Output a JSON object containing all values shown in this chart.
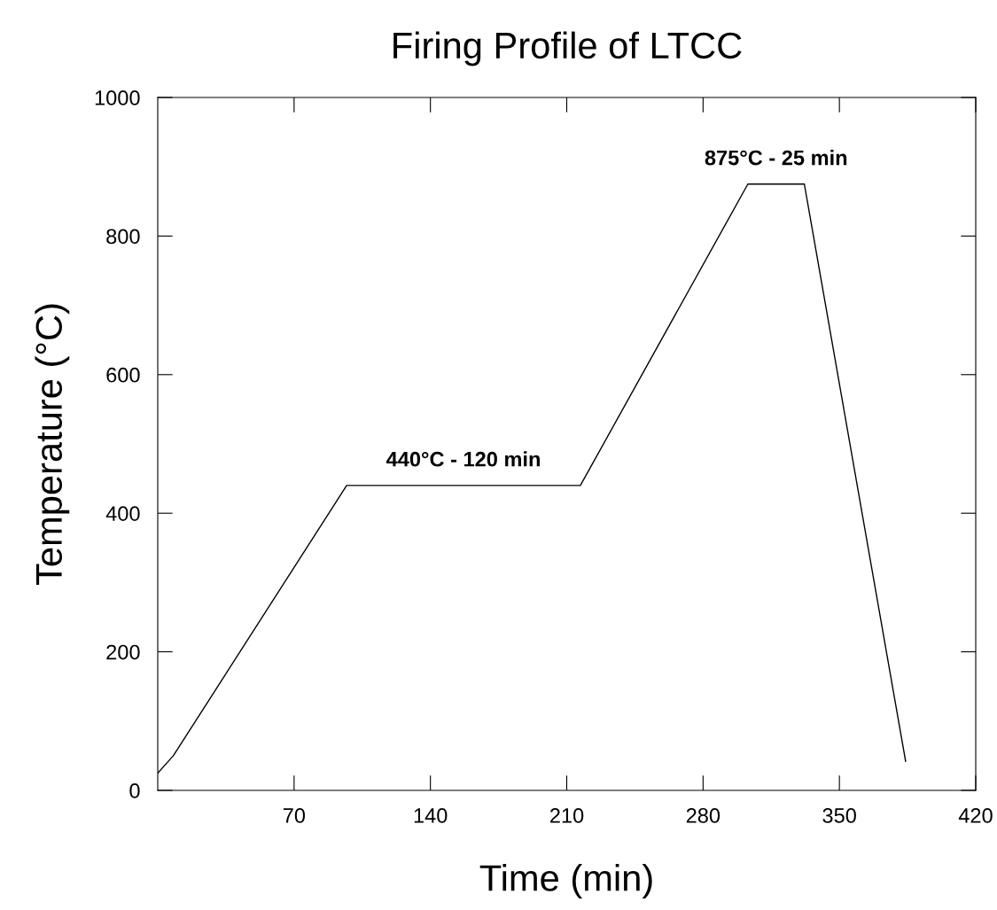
{
  "chart_data": {
    "type": "line",
    "title": "Firing Profile of LTCC",
    "xlabel": "Time (min)",
    "ylabel": "Temperature (°C)",
    "x": [
      0,
      8,
      97,
      217,
      303,
      332,
      384
    ],
    "series": [
      {
        "color": "#000000",
        "values": [
          25,
          50,
          440,
          440,
          875,
          875,
          42
        ]
      }
    ],
    "xlim": [
      0,
      420
    ],
    "ylim": [
      0,
      1000
    ],
    "xticks": [
      70,
      140,
      210,
      280,
      350,
      420
    ],
    "yticks": [
      0,
      200,
      400,
      600,
      800,
      1000
    ],
    "grid": false,
    "marker": "none",
    "line_style": "solid",
    "annotations": [
      {
        "text": "440°C - 120 min",
        "x": 157,
        "y": 440
      },
      {
        "text": "875°C - 25 min",
        "x": 317.5,
        "y": 875
      }
    ]
  }
}
